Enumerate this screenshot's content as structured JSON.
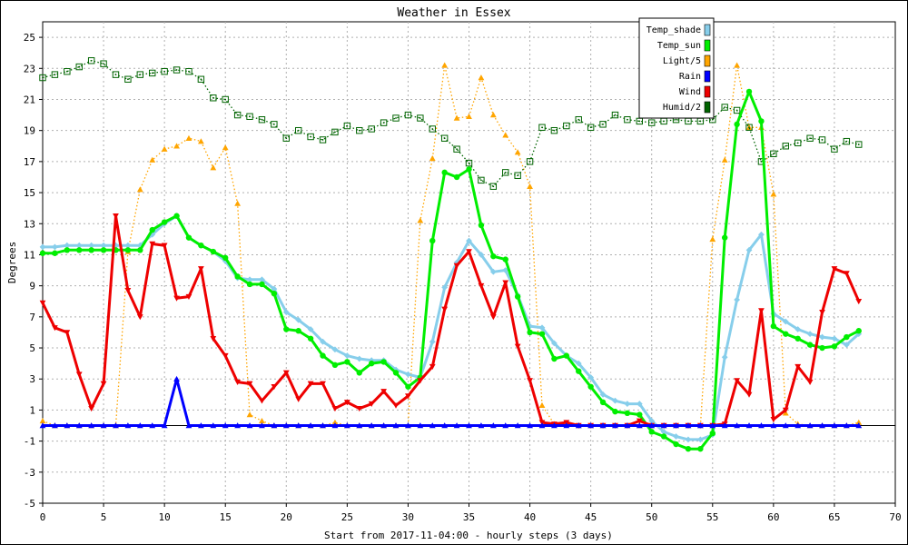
{
  "chart_data": {
    "type": "line",
    "title": "Weather in Essex",
    "xlabel": "Start from 2017-11-04:00 - hourly steps (3 days)",
    "ylabel": "Degrees",
    "xlim": [
      0,
      70
    ],
    "ylim": [
      -5,
      26
    ],
    "x_ticks": [
      0,
      5,
      10,
      15,
      20,
      25,
      30,
      35,
      40,
      45,
      50,
      55,
      60,
      65,
      70
    ],
    "y_ticks": [
      -5,
      -3,
      -1,
      1,
      3,
      5,
      7,
      9,
      11,
      13,
      15,
      17,
      19,
      21,
      23,
      25
    ],
    "grid": true,
    "legend_position": "top-right",
    "x": [
      0,
      1,
      2,
      3,
      4,
      5,
      6,
      7,
      8,
      9,
      10,
      11,
      12,
      13,
      14,
      15,
      16,
      17,
      18,
      19,
      20,
      21,
      22,
      23,
      24,
      25,
      26,
      27,
      28,
      29,
      30,
      31,
      32,
      33,
      34,
      35,
      36,
      37,
      38,
      39,
      40,
      41,
      42,
      43,
      44,
      45,
      46,
      47,
      48,
      49,
      50,
      51,
      52,
      53,
      54,
      55,
      56,
      57,
      58,
      59,
      60,
      61,
      62,
      63,
      64,
      65,
      66,
      67
    ],
    "series": [
      {
        "name": "Temp_shade",
        "color": "#87ceeb",
        "style": "solid",
        "marker": "diamond",
        "values": [
          11.5,
          11.5,
          11.6,
          11.6,
          11.6,
          11.6,
          11.6,
          11.6,
          11.6,
          12.3,
          13.0,
          13.5,
          12.1,
          11.6,
          11.2,
          10.6,
          9.5,
          9.4,
          9.4,
          8.8,
          7.3,
          6.8,
          6.2,
          5.4,
          4.9,
          4.5,
          4.3,
          4.2,
          4.2,
          3.6,
          3.3,
          3.1,
          5.4,
          8.9,
          10.5,
          11.9,
          11.0,
          9.9,
          10.0,
          8.4,
          6.4,
          6.3,
          5.3,
          4.5,
          4.0,
          3.1,
          2.0,
          1.6,
          1.4,
          1.4,
          0.3,
          -0.4,
          -0.7,
          -0.9,
          -0.9,
          -0.6,
          4.4,
          8.1,
          11.3,
          12.3,
          7.2,
          6.7,
          6.2,
          5.9,
          5.7,
          5.6,
          5.2,
          5.9
        ]
      },
      {
        "name": "Temp_sun",
        "color": "#00ee00",
        "style": "solid",
        "marker": "circle",
        "values": [
          11.1,
          11.1,
          11.3,
          11.3,
          11.3,
          11.3,
          11.3,
          11.3,
          11.3,
          12.6,
          13.1,
          13.5,
          12.1,
          11.6,
          11.2,
          10.8,
          9.6,
          9.1,
          9.1,
          8.5,
          6.2,
          6.1,
          5.6,
          4.5,
          3.9,
          4.1,
          3.4,
          4.0,
          4.1,
          3.4,
          2.5,
          3.1,
          11.9,
          16.3,
          16.0,
          16.5,
          12.9,
          10.9,
          10.7,
          8.3,
          6.0,
          5.9,
          4.3,
          4.5,
          3.5,
          2.5,
          1.5,
          0.9,
          0.8,
          0.7,
          -0.4,
          -0.7,
          -1.2,
          -1.5,
          -1.5,
          -0.5,
          12.1,
          19.4,
          21.5,
          19.6,
          6.4,
          5.9,
          5.6,
          5.2,
          5.0,
          5.1,
          5.7,
          6.1
        ]
      },
      {
        "name": "Light/5",
        "color": "#ffa500",
        "style": "dotted",
        "marker": "triangle-up",
        "values": [
          0.3,
          0.0,
          0.0,
          0.0,
          0.0,
          0.0,
          0.0,
          11.2,
          15.2,
          17.1,
          17.8,
          18.0,
          18.5,
          18.3,
          16.6,
          17.9,
          14.3,
          0.7,
          0.3,
          0.0,
          0.0,
          0.0,
          0.0,
          0.0,
          0.2,
          0.0,
          0.0,
          0.0,
          0.0,
          0.0,
          0.0,
          13.2,
          17.2,
          23.2,
          19.8,
          19.9,
          22.4,
          20.0,
          18.7,
          17.6,
          15.4,
          1.3,
          0.1,
          0.1,
          0.0,
          0.0,
          0.0,
          0.0,
          0.0,
          0.0,
          0.0,
          0.0,
          0.0,
          0.0,
          0.0,
          12.0,
          17.1,
          23.2,
          19.2,
          19.2,
          14.9,
          0.8,
          0.1,
          0.0,
          0.0,
          0.0,
          0.0,
          0.2
        ]
      },
      {
        "name": "Rain",
        "color": "#0000ff",
        "style": "solid",
        "marker": "triangle-up",
        "values": [
          0,
          0,
          0,
          0,
          0,
          0,
          0,
          0,
          0,
          0,
          0,
          3.0,
          0,
          0,
          0,
          0,
          0,
          0,
          0,
          0,
          0,
          0,
          0,
          0,
          0,
          0,
          0,
          0,
          0,
          0,
          0,
          0,
          0,
          0,
          0,
          0,
          0,
          0,
          0,
          0,
          0,
          0,
          0,
          0,
          0,
          0,
          0,
          0,
          0,
          0,
          0,
          0,
          0,
          0,
          0,
          0,
          0,
          0,
          0,
          0,
          0,
          0,
          0,
          0,
          0,
          0,
          0,
          0
        ]
      },
      {
        "name": "Wind",
        "color": "#ee0000",
        "style": "solid",
        "marker": "triangle-down",
        "values": [
          7.9,
          6.3,
          6.0,
          3.3,
          1.1,
          2.7,
          13.5,
          8.7,
          7.0,
          11.7,
          11.6,
          8.2,
          8.3,
          10.1,
          5.6,
          4.5,
          2.8,
          2.7,
          1.6,
          2.5,
          3.4,
          1.7,
          2.7,
          2.7,
          1.1,
          1.5,
          1.1,
          1.4,
          2.2,
          1.3,
          1.9,
          2.9,
          3.8,
          7.5,
          10.3,
          11.2,
          9.0,
          7.0,
          9.2,
          5.1,
          2.9,
          0.2,
          0.1,
          0.2,
          0.0,
          0.0,
          0.0,
          0.0,
          0.0,
          0.3,
          0.0,
          0.0,
          0.0,
          0.0,
          0.0,
          0.0,
          0.1,
          2.9,
          2.0,
          7.4,
          0.4,
          1.0,
          3.8,
          2.8,
          7.3,
          10.1,
          9.8,
          8.0
        ]
      },
      {
        "name": "Humid/2",
        "color": "#006400",
        "style": "dotted",
        "marker": "square-open",
        "values": [
          22.4,
          22.6,
          22.8,
          23.1,
          23.5,
          23.3,
          22.6,
          22.3,
          22.6,
          22.7,
          22.8,
          22.9,
          22.8,
          22.3,
          21.1,
          21.0,
          20.0,
          19.9,
          19.7,
          19.4,
          18.5,
          19.0,
          18.6,
          18.4,
          18.9,
          19.3,
          19.0,
          19.1,
          19.5,
          19.8,
          20.0,
          19.8,
          19.1,
          18.5,
          17.8,
          16.9,
          15.8,
          15.4,
          16.3,
          16.1,
          17.0,
          19.2,
          19.0,
          19.3,
          19.7,
          19.2,
          19.4,
          20.0,
          19.7,
          19.6,
          19.5,
          19.6,
          19.7,
          19.6,
          19.6,
          19.7,
          20.5,
          20.3,
          19.2,
          17.0,
          17.5,
          18.0,
          18.2,
          18.5,
          18.4,
          17.8,
          18.3,
          18.1
        ]
      }
    ]
  }
}
